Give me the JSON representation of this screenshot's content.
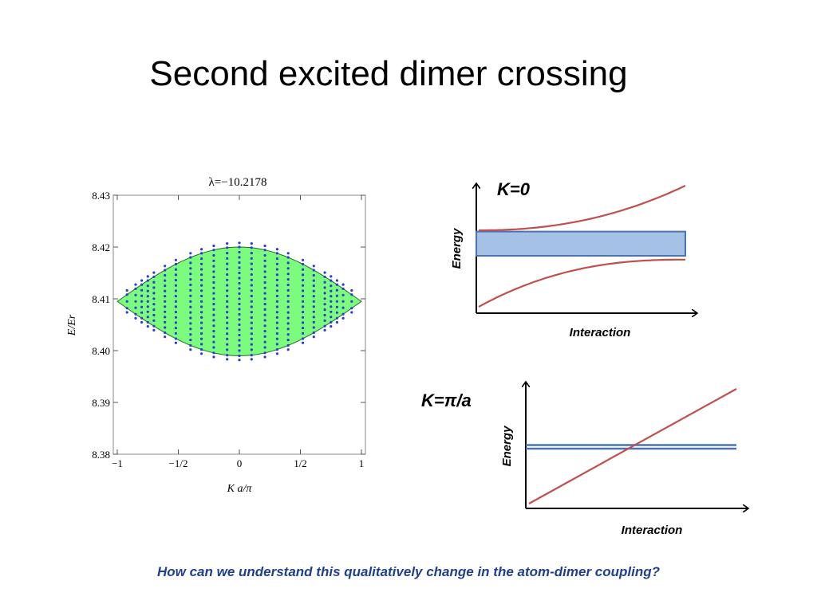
{
  "slide": {
    "title": "Second excited dimer crossing",
    "question": "How can we understand this qualitatively change in the atom-dimer coupling?",
    "question_color": "#1f3f8f"
  },
  "chart_data": [
    {
      "type": "scatter",
      "title": "λ=−10.2178",
      "xlabel": "K a/π",
      "ylabel": "E/Er",
      "xlim": [
        -1,
        1
      ],
      "ylim": [
        8.38,
        8.43
      ],
      "x_ticks": [
        {
          "value": -1,
          "label": "−1"
        },
        {
          "value": -0.5,
          "label": "−1/2"
        },
        {
          "value": 0,
          "label": "0"
        },
        {
          "value": 0.5,
          "label": "1/2"
        },
        {
          "value": 1,
          "label": "1"
        }
      ],
      "y_ticks": [
        {
          "value": 8.43,
          "label": "8.43"
        },
        {
          "value": 8.42,
          "label": "8.42"
        },
        {
          "value": 8.41,
          "label": "8.41"
        },
        {
          "value": 8.4,
          "label": "8.40"
        },
        {
          "value": 8.39,
          "label": "8.39"
        },
        {
          "value": 8.38,
          "label": "8.38"
        }
      ],
      "band": {
        "center": 8.4095,
        "half_width_at_K0": 0.0105,
        "shape": "cos(πK/2)",
        "fill": "#7cfc7c"
      },
      "dots": {
        "color": "#2a3bd6",
        "columns_x": [
          -0.92,
          -0.85,
          -0.8,
          -0.75,
          -0.7,
          -0.61,
          -0.52,
          -0.4,
          -0.31,
          -0.21,
          -0.1,
          0,
          0.1,
          0.21,
          0.31,
          0.4,
          0.52,
          0.61,
          0.7,
          0.75,
          0.8,
          0.85,
          0.92
        ],
        "y_step": 0.001,
        "outer_offset": 0.0008
      },
      "grid": false,
      "legend": "none"
    },
    {
      "type": "line",
      "heading": "K=0",
      "xlabel": "Interaction",
      "ylabel": "Energy",
      "band": {
        "lower": 0.45,
        "upper": 0.64,
        "color": "#4a73b0",
        "fill": "#a6c1e6"
      },
      "upper_curve": {
        "color": "#c0504d",
        "start": 0.65,
        "end": 1.0
      },
      "lower_curve": {
        "color": "#c0504d",
        "start": 0.05,
        "end": 0.42
      }
    },
    {
      "type": "line",
      "heading": "K=π/a",
      "xlabel": "Interaction",
      "ylabel": "Energy",
      "band": {
        "lower": 0.5,
        "upper": 0.53,
        "color": "#4a73b0"
      },
      "line": {
        "color": "#c0504d",
        "start": 0.04,
        "end": 1.0
      }
    }
  ]
}
